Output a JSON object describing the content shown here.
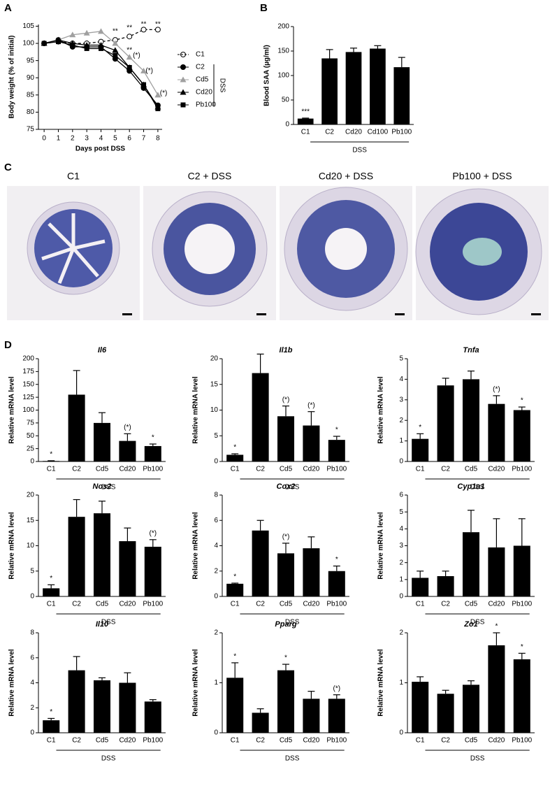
{
  "panel_labels": [
    "A",
    "B",
    "C",
    "D"
  ],
  "histology": {
    "titles": [
      "C1",
      "C2 + DSS",
      "Cd20 + DSS",
      "Pb100 + DSS"
    ]
  },
  "chart_data": [
    {
      "type": "line",
      "xlabel": "Days post DSS",
      "ylabel": "Body weight (% of initial)",
      "x": [
        0,
        1,
        2,
        3,
        4,
        5,
        6,
        7,
        8
      ],
      "xlim": [
        -0.4,
        8.3
      ],
      "xticks": [
        0,
        1,
        2,
        3,
        4,
        5,
        6,
        7,
        8
      ],
      "ylim": [
        75,
        105.5
      ],
      "yticks": [
        75,
        80,
        85,
        90,
        95,
        100,
        105
      ],
      "series": [
        {
          "name": "C1",
          "color": "#000000",
          "marker": "open-circle",
          "dashed": true,
          "values": [
            100,
            100.5,
            100,
            100,
            100.5,
            101,
            102,
            104,
            104
          ]
        },
        {
          "name": "C2",
          "color": "#000000",
          "marker": "circle",
          "dashed": false,
          "values": [
            100,
            101,
            99,
            99,
            99,
            95.5,
            92,
            87,
            82
          ]
        },
        {
          "name": "Cd5",
          "color": "#a0a0a0",
          "marker": "triangle",
          "dashed": false,
          "values": [
            100,
            101,
            102.5,
            103,
            103.5,
            100,
            96,
            92,
            85
          ]
        },
        {
          "name": "Cd20",
          "color": "#000000",
          "marker": "triangle",
          "dashed": false,
          "values": [
            100,
            101,
            100,
            99.5,
            99.5,
            98,
            93,
            88,
            81.5
          ]
        },
        {
          "name": "Pb100",
          "color": "#000000",
          "marker": "square",
          "dashed": false,
          "values": [
            100,
            100.5,
            99.5,
            98.5,
            98.5,
            96.5,
            93,
            88,
            81
          ]
        }
      ],
      "group_label": "DSS",
      "annotations": [
        {
          "text": "**",
          "x": 5,
          "y": 103.5
        },
        {
          "text": "**",
          "x": 6,
          "y": 104.5
        },
        {
          "text": "**",
          "x": 7,
          "y": 105.5
        },
        {
          "text": "**",
          "x": 8,
          "y": 105.5
        },
        {
          "text": "**",
          "x": 6,
          "y": 98
        },
        {
          "text": "(*)",
          "x": 6.5,
          "y": 96.5
        },
        {
          "text": "(*)",
          "x": 7.4,
          "y": 92
        },
        {
          "text": "(*)",
          "x": 8.4,
          "y": 85.5
        }
      ]
    },
    {
      "type": "bar",
      "ylabel": "Blood SAA (µg/ml)",
      "categories": [
        "C1",
        "C2",
        "Cd20",
        "Cd100",
        "Pb100"
      ],
      "values": [
        12,
        135,
        148,
        155,
        117
      ],
      "errors": [
        1,
        18,
        8,
        6,
        20
      ],
      "ylim": [
        0,
        200
      ],
      "yticks": [
        0,
        50,
        100,
        150,
        200
      ],
      "annotations": [
        "***",
        null,
        null,
        null,
        null
      ],
      "group_label": "DSS",
      "color": "#000000"
    },
    {
      "type": "bar",
      "title": "Il6",
      "ylabel": "Relative mRNA level",
      "categories": [
        "C1",
        "C2",
        "Cd5",
        "Cd20",
        "Pb100"
      ],
      "values": [
        1,
        130,
        75,
        40,
        30
      ],
      "errors": [
        0.5,
        47,
        20,
        14,
        4
      ],
      "ylim": [
        0,
        200
      ],
      "yticks": [
        0,
        25,
        50,
        75,
        100,
        125,
        150,
        175,
        200
      ],
      "annotations": [
        "*",
        null,
        null,
        "(*)",
        "*"
      ],
      "group_label": "DSS",
      "color": "#000000"
    },
    {
      "type": "bar",
      "title": "Il1b",
      "ylabel": "Relative mRNA level",
      "categories": [
        "C1",
        "C2",
        "Cd5",
        "Cd20",
        "Pb100"
      ],
      "values": [
        1.3,
        17.2,
        8.8,
        7,
        4.2
      ],
      "errors": [
        0.2,
        3.7,
        2,
        2.7,
        0.7
      ],
      "ylim": [
        0,
        20
      ],
      "yticks": [
        0,
        5,
        10,
        15,
        20
      ],
      "annotations": [
        "*",
        null,
        "(*)",
        "(*)",
        "*"
      ],
      "group_label": "DSS",
      "color": "#000000"
    },
    {
      "type": "bar",
      "title": "Tnfa",
      "ylabel": "Relative mRNA level",
      "categories": [
        "C1",
        "C2",
        "Cd5",
        "Cd20",
        "Pb100"
      ],
      "values": [
        1.1,
        3.7,
        4,
        2.8,
        2.5
      ],
      "errors": [
        0.25,
        0.35,
        0.4,
        0.4,
        0.15
      ],
      "ylim": [
        0,
        5
      ],
      "yticks": [
        0,
        1,
        2,
        3,
        4,
        5
      ],
      "annotations": [
        "*",
        null,
        null,
        "(*)",
        "*"
      ],
      "group_label": "DSS",
      "color": "#000000"
    },
    {
      "type": "bar",
      "title": "Nos2",
      "ylabel": "Relative mRNA level",
      "categories": [
        "C1",
        "C2",
        "Cd5",
        "Cd20",
        "Pb100"
      ],
      "values": [
        1.6,
        15.7,
        16.4,
        10.9,
        9.8
      ],
      "errors": [
        0.7,
        3.4,
        2.4,
        2.6,
        1.4
      ],
      "ylim": [
        0,
        20
      ],
      "yticks": [
        0,
        5,
        10,
        15,
        20
      ],
      "annotations": [
        "*",
        null,
        null,
        null,
        "(*)"
      ],
      "group_label": "DSS",
      "color": "#000000"
    },
    {
      "type": "bar",
      "title": "Cox2",
      "ylabel": "Relative mRNA level",
      "categories": [
        "C1",
        "C2",
        "Cd5",
        "Cd20",
        "Pb100"
      ],
      "values": [
        1,
        5.2,
        3.4,
        3.8,
        2
      ],
      "errors": [
        0.05,
        0.8,
        0.8,
        0.9,
        0.4
      ],
      "ylim": [
        0,
        8
      ],
      "yticks": [
        0,
        2,
        4,
        6,
        8
      ],
      "annotations": [
        "*",
        null,
        "(*)",
        null,
        "*"
      ],
      "group_label": "DSS",
      "color": "#000000"
    },
    {
      "type": "bar",
      "title": "Cyp1a1",
      "ylabel": "Relative mRNA level",
      "categories": [
        "C1",
        "C2",
        "Cd5",
        "Cd20",
        "Pb100"
      ],
      "values": [
        1.1,
        1.2,
        3.8,
        2.9,
        3
      ],
      "errors": [
        0.4,
        0.3,
        1.3,
        1.7,
        1.6
      ],
      "ylim": [
        0,
        6
      ],
      "yticks": [
        0,
        1,
        2,
        3,
        4,
        5,
        6
      ],
      "annotations": [
        null,
        null,
        null,
        null,
        null
      ],
      "group_label": "DSS",
      "color": "#000000"
    },
    {
      "type": "bar",
      "title": "Il10",
      "ylabel": "Relative mRNA level",
      "categories": [
        "C1",
        "C2",
        "Cd5",
        "Cd20",
        "Pb100"
      ],
      "values": [
        1,
        5,
        4.2,
        4,
        2.5
      ],
      "errors": [
        0.15,
        1.1,
        0.2,
        0.8,
        0.15
      ],
      "ylim": [
        0,
        8
      ],
      "yticks": [
        0,
        2,
        4,
        6,
        8
      ],
      "annotations": [
        "*",
        null,
        null,
        null,
        null
      ],
      "group_label": "DSS",
      "color": "#000000"
    },
    {
      "type": "bar",
      "title": "Pparg",
      "ylabel": "Relative mRNA level",
      "categories": [
        "C1",
        "C2",
        "Cd5",
        "Cd20",
        "Pb100"
      ],
      "values": [
        1.1,
        0.4,
        1.25,
        0.68,
        0.68
      ],
      "errors": [
        0.3,
        0.08,
        0.12,
        0.15,
        0.08
      ],
      "ylim": [
        0,
        2
      ],
      "yticks": [
        0,
        1,
        2
      ],
      "annotations": [
        "*",
        null,
        "*",
        null,
        "(*)"
      ],
      "group_label": "DSS",
      "color": "#000000"
    },
    {
      "type": "bar",
      "title": "Zo1",
      "ylabel": "Relative mRNA level",
      "categories": [
        "C1",
        "C2",
        "Cd5",
        "Cd20",
        "Pb100"
      ],
      "values": [
        1.02,
        0.78,
        0.96,
        1.75,
        1.47
      ],
      "errors": [
        0.1,
        0.07,
        0.08,
        0.25,
        0.12
      ],
      "ylim": [
        0,
        2
      ],
      "yticks": [
        0,
        1,
        2
      ],
      "annotations": [
        null,
        null,
        null,
        "*",
        "*"
      ],
      "group_label": "DSS",
      "color": "#000000"
    }
  ]
}
